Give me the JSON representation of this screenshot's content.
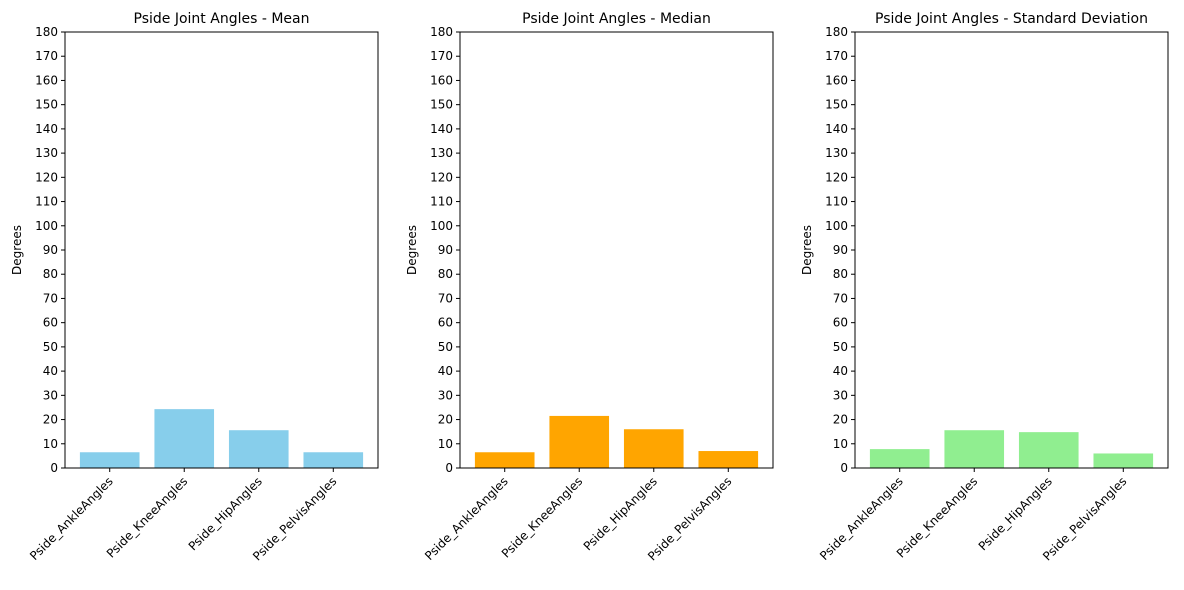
{
  "chart_data": [
    {
      "type": "bar",
      "title": "Pside Joint Angles - Mean",
      "ylabel": "Degrees",
      "xlabel": "",
      "categories": [
        "Pside_AnkleAngles",
        "Pside_KneeAngles",
        "Pside_HipAngles",
        "Pside_PelvisAngles"
      ],
      "values": [
        6.5,
        24.3,
        15.6,
        6.5
      ],
      "ylim": [
        0,
        180
      ],
      "yticks": [
        0,
        10,
        20,
        30,
        40,
        50,
        60,
        70,
        80,
        90,
        100,
        110,
        120,
        130,
        140,
        150,
        160,
        170,
        180
      ],
      "color": "#87ceeb",
      "grid": false
    },
    {
      "type": "bar",
      "title": "Pside Joint Angles - Median",
      "ylabel": "Degrees",
      "xlabel": "",
      "categories": [
        "Pside_AnkleAngles",
        "Pside_KneeAngles",
        "Pside_HipAngles",
        "Pside_PelvisAngles"
      ],
      "values": [
        6.5,
        21.5,
        16.0,
        7.0
      ],
      "ylim": [
        0,
        180
      ],
      "yticks": [
        0,
        10,
        20,
        30,
        40,
        50,
        60,
        70,
        80,
        90,
        100,
        110,
        120,
        130,
        140,
        150,
        160,
        170,
        180
      ],
      "color": "#ffa500",
      "grid": false
    },
    {
      "type": "bar",
      "title": "Pside Joint Angles - Standard Deviation",
      "ylabel": "Degrees",
      "xlabel": "",
      "categories": [
        "Pside_AnkleAngles",
        "Pside_KneeAngles",
        "Pside_HipAngles",
        "Pside_PelvisAngles"
      ],
      "values": [
        7.8,
        15.6,
        14.8,
        6.0
      ],
      "ylim": [
        0,
        180
      ],
      "yticks": [
        0,
        10,
        20,
        30,
        40,
        50,
        60,
        70,
        80,
        90,
        100,
        110,
        120,
        130,
        140,
        150,
        160,
        170,
        180
      ],
      "color": "#90ee90",
      "grid": false
    }
  ]
}
